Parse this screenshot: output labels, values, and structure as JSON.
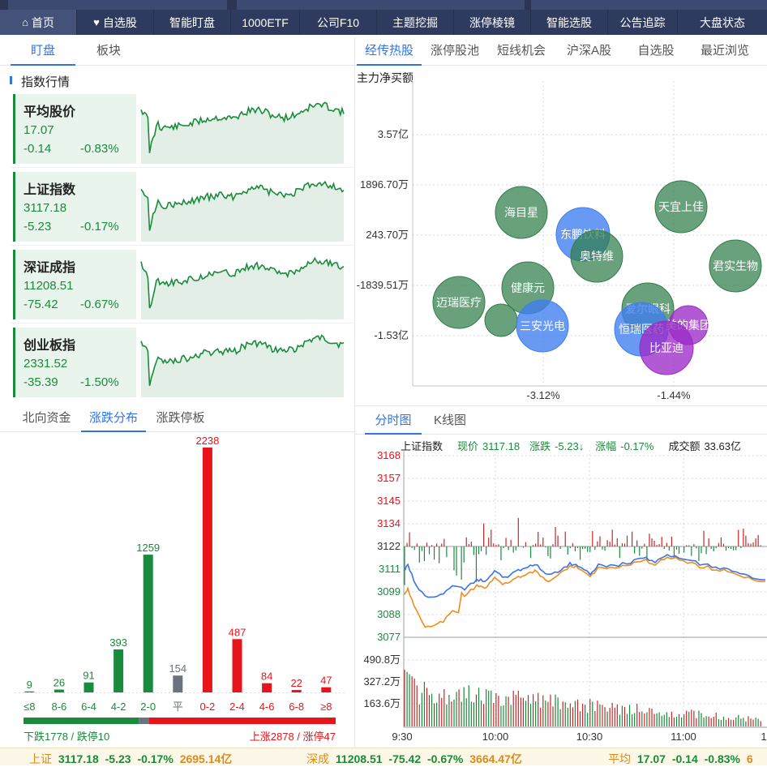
{
  "nav": [
    {
      "label": "首页",
      "icon": "home-icon",
      "active": true
    },
    {
      "label": "自选股",
      "icon": "heart-icon"
    },
    {
      "label": "智能盯盘"
    },
    {
      "label": "1000ETF"
    },
    {
      "label": "公司F10"
    },
    {
      "label": "主题挖掘"
    },
    {
      "label": "涨停棱镜"
    },
    {
      "label": "智能选股"
    },
    {
      "label": "公告追踪"
    },
    {
      "label": "大盘状态"
    }
  ],
  "left_tabs": [
    "盯盘",
    "板块"
  ],
  "index_section_title": "指数行情",
  "indices": [
    {
      "name": "平均股价",
      "price": "17.07",
      "change": "-0.14",
      "pct": "-0.83%"
    },
    {
      "name": "上证指数",
      "price": "3117.18",
      "change": "-5.23",
      "pct": "-0.17%"
    },
    {
      "name": "深证成指",
      "price": "11208.51",
      "change": "-75.42",
      "pct": "-0.67%"
    },
    {
      "name": "创业板指",
      "price": "2331.52",
      "change": "-35.39",
      "pct": "-1.50%"
    }
  ],
  "right_tabs": [
    "经传热股",
    "涨停股池",
    "短线机会",
    "沪深A股",
    "自选股",
    "最近浏览"
  ],
  "bubble": {
    "ylabel": "主力净买额",
    "yticks": [
      "3.57亿",
      "1896.70万",
      "243.70万",
      "-1839.51万",
      "-1.53亿"
    ],
    "xticks": [
      "-3.12%",
      "-1.44%"
    ],
    "bubbles": [
      {
        "name": "海目星",
        "color": "green"
      },
      {
        "name": "天宜上佳",
        "color": "green"
      },
      {
        "name": "东鹏饮料",
        "color": "blue"
      },
      {
        "name": "奥特维",
        "color": "green"
      },
      {
        "name": "君实生物",
        "color": "green"
      },
      {
        "name": "健康元",
        "color": "green"
      },
      {
        "name": "迈瑞医疗",
        "color": "green"
      },
      {
        "name": "",
        "color": "green"
      },
      {
        "name": "三安光电",
        "color": "blue"
      },
      {
        "name": "爱尔眼科",
        "color": "green"
      },
      {
        "name": "恒瑞医药",
        "color": "blue"
      },
      {
        "name": "美的集团",
        "color": "purple"
      },
      {
        "name": "比亚迪",
        "color": "purple"
      }
    ]
  },
  "dist_tabs": [
    "北向资金",
    "涨跌分布",
    "涨跌停板"
  ],
  "chart_data": {
    "type": "bar",
    "categories": [
      "≤8",
      "8-6",
      "6-4",
      "4-2",
      "2-0",
      "平",
      "0-2",
      "2-4",
      "4-6",
      "6-8",
      "≥8"
    ],
    "values": [
      9,
      26,
      91,
      393,
      1259,
      154,
      2238,
      487,
      84,
      22,
      47
    ],
    "value_labels": [
      "9",
      "26",
      "91",
      "393",
      "1259",
      "154",
      "2238",
      "487",
      "84",
      "22",
      "47"
    ],
    "colors": [
      "#1a8a3c",
      "#1a8a3c",
      "#1a8a3c",
      "#1a8a3c",
      "#1a8a3c",
      "#6b7280",
      "#e8141c",
      "#e8141c",
      "#e8141c",
      "#e8141c",
      "#e8141c"
    ],
    "ratio": {
      "down": 1778,
      "flat": 154,
      "up": 2878
    }
  },
  "dist_footer": {
    "left": "下跌1778 / 跌停10",
    "right": "上涨2878 / 涨停47"
  },
  "timechart_tabs": [
    "分时图",
    "K线图"
  ],
  "timechart": {
    "name": "上证指数",
    "now_label": "现价",
    "now": "3117.18",
    "chg_label": "涨跌",
    "chg": "-5.23↓",
    "pct_label": "涨幅",
    "pct": "-0.17%",
    "vol_label": "成交额",
    "vol": "33.63亿",
    "yticks_up": [
      "3168",
      "3157",
      "3145",
      "3134"
    ],
    "ytick_mid": "3122",
    "yticks_down": [
      "3111",
      "3099",
      "3088",
      "3077"
    ],
    "vol_ticks": [
      "490.8万",
      "327.2万",
      "163.6万"
    ],
    "xticks": [
      "9:30",
      "10:00",
      "10:30",
      "11:00",
      "1"
    ]
  },
  "bottom": [
    {
      "name": "上证",
      "price": "3117.18",
      "chg": "-5.23",
      "pct": "-0.17%",
      "amt": "2695.14亿"
    },
    {
      "name": "深成",
      "price": "11208.51",
      "chg": "-75.42",
      "pct": "-0.67%",
      "amt": "3664.47亿"
    },
    {
      "name": "平均",
      "price": "17.07",
      "chg": "-0.14",
      "pct": "-0.83%",
      "amt": "6"
    }
  ]
}
